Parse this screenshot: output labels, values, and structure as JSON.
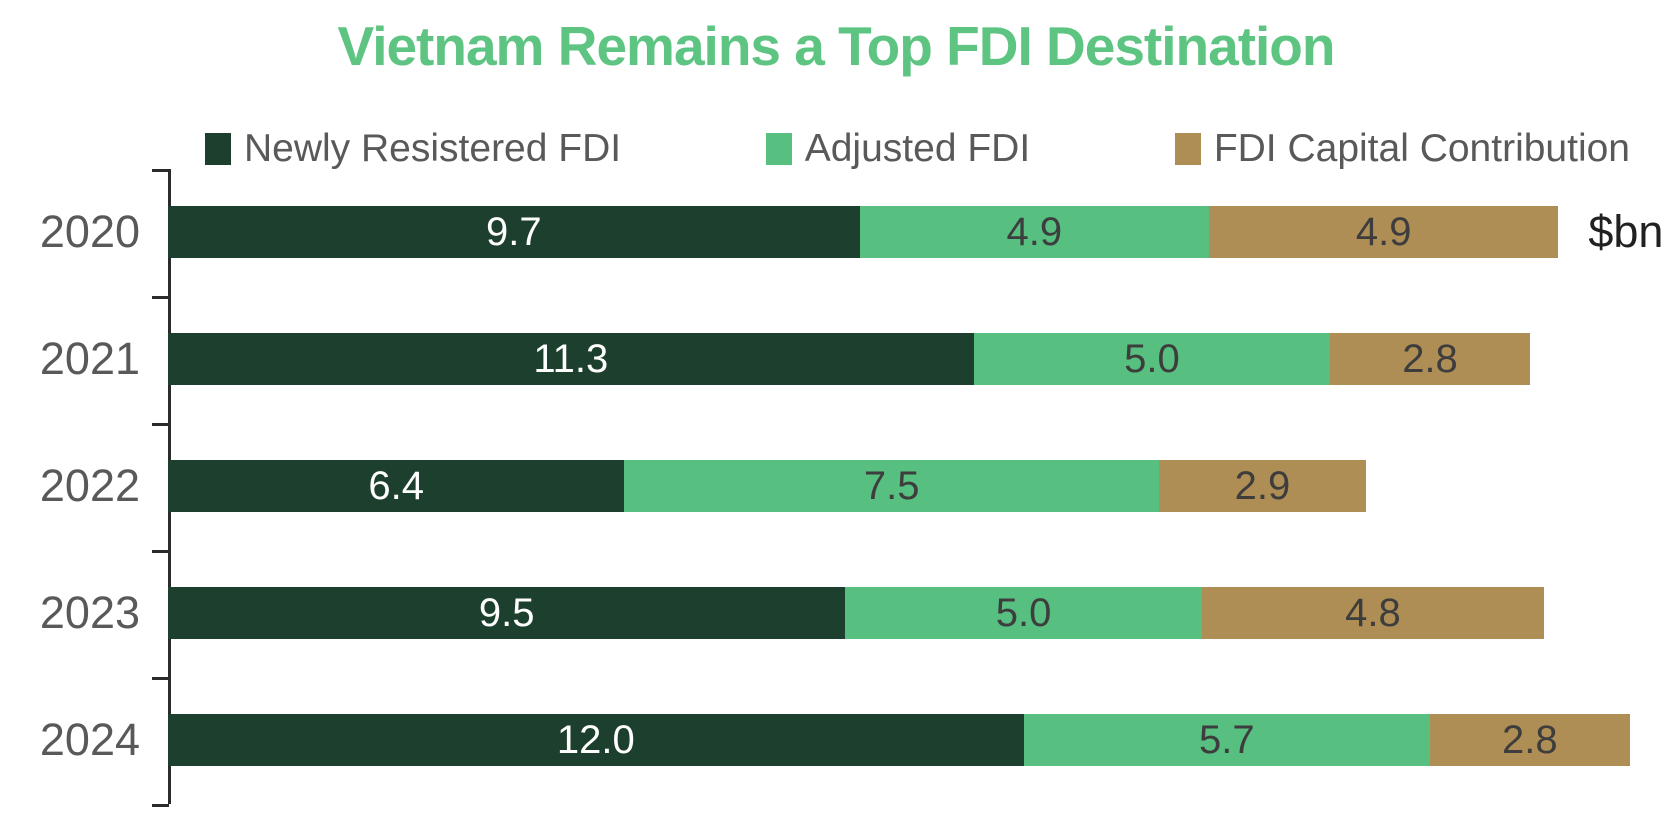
{
  "title": {
    "text": "Vietnam Remains a Top FDI Destination",
    "color": "#5ec482"
  },
  "legend": {
    "items": [
      {
        "label": "Newly Resistered FDI",
        "color": "#1d402e"
      },
      {
        "label": "Adjusted FDI",
        "color": "#57bf80"
      },
      {
        "label": "FDI Capital Contribution",
        "color": "#ae8e55"
      }
    ]
  },
  "chart_data": {
    "type": "bar",
    "orientation": "horizontal",
    "stacked": true,
    "title": "Vietnam Remains a Top FDI Destination",
    "unit": "$bn",
    "categories": [
      "2020",
      "2021",
      "2022",
      "2023",
      "2024"
    ],
    "series": [
      {
        "name": "Newly Resistered FDI",
        "color": "#1d402e",
        "label_color": "#ffffff",
        "values": [
          9.7,
          11.3,
          6.4,
          9.5,
          12.0
        ]
      },
      {
        "name": "Adjusted FDI",
        "color": "#57bf80",
        "label_color": "#3d3d3d",
        "values": [
          4.9,
          5.0,
          7.5,
          5.0,
          5.7
        ]
      },
      {
        "name": "FDI Capital Contribution",
        "color": "#ae8e55",
        "label_color": "#3d3d3d",
        "values": [
          4.9,
          2.8,
          2.9,
          4.8,
          2.8
        ]
      }
    ],
    "totals": [
      19.5,
      19.1,
      16.8,
      19.3,
      20.5
    ],
    "xlim": [
      0,
      20.5
    ],
    "value_label_decimals": 1,
    "legend_position": "top",
    "grid": false,
    "axis_color": "#2b2b2b"
  }
}
